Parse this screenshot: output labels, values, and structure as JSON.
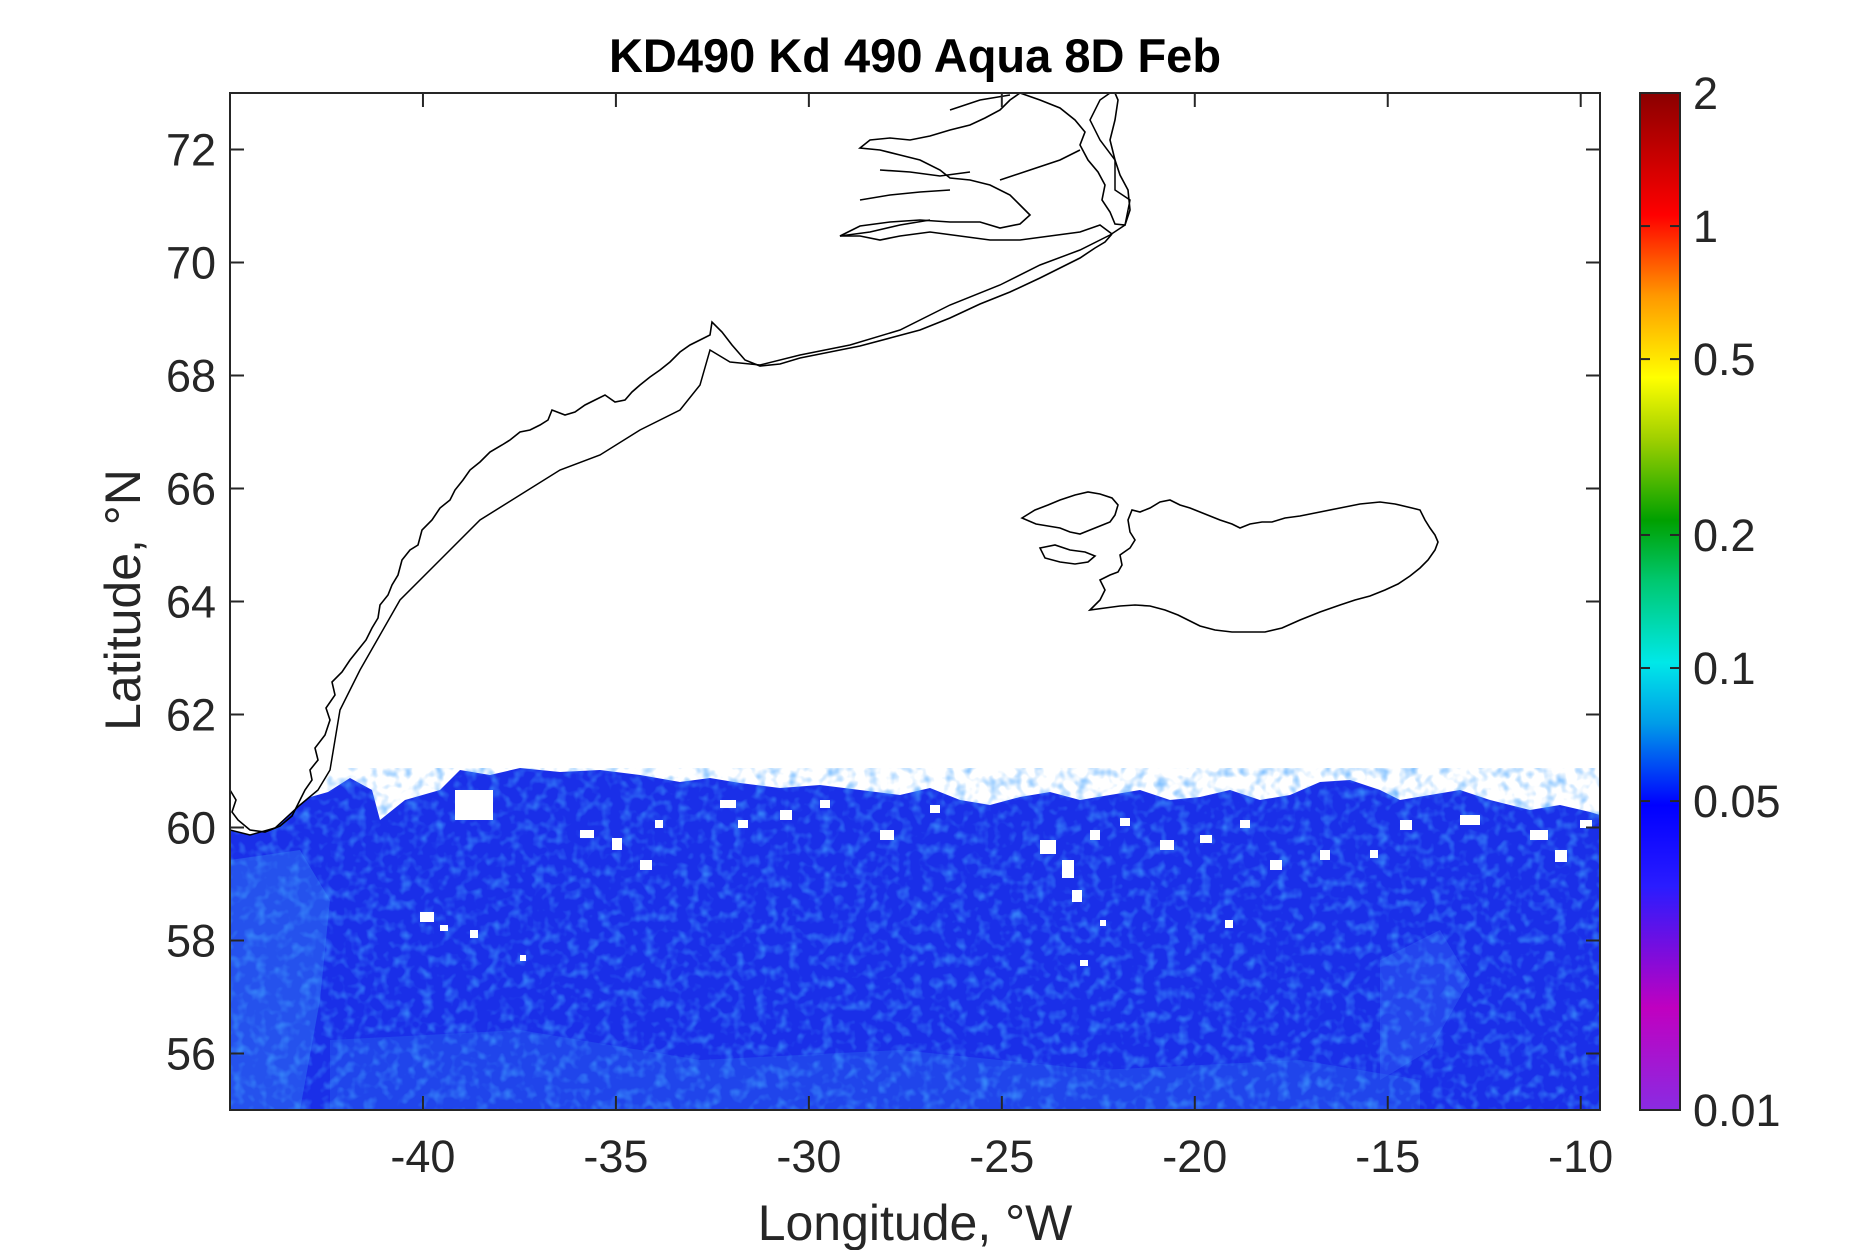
{
  "title": "KD490 Kd 490 Aqua 8D Feb",
  "xlabel": "Longitude, °W",
  "ylabel": "Latitude, °N",
  "chart_data": {
    "type": "heatmap",
    "title": "KD490 Kd 490 Aqua 8D Feb",
    "xlabel": "Longitude, °W",
    "ylabel": "Latitude, °N",
    "xlim": [
      -45,
      -9.5
    ],
    "ylim": [
      55,
      73
    ],
    "x_ticks": [
      -40,
      -35,
      -30,
      -25,
      -20,
      -15,
      -10
    ],
    "x_tick_labels": [
      "-40",
      "-35",
      "-30",
      "-25",
      "-20",
      "-15",
      "-10"
    ],
    "y_ticks": [
      56,
      58,
      60,
      62,
      64,
      66,
      68,
      70,
      72
    ],
    "y_tick_labels": [
      "56",
      "58",
      "60",
      "62",
      "64",
      "66",
      "68",
      "70",
      "72"
    ],
    "colorbar": {
      "scale": "log",
      "range": [
        0.01,
        2
      ],
      "ticks": [
        0.01,
        0.05,
        0.1,
        0.2,
        0.5,
        1,
        2
      ],
      "tick_labels": [
        "0.01",
        "0.05",
        "0.1",
        "0.2",
        "0.5",
        "1",
        "2"
      ],
      "colormap": [
        "#8a2be2",
        "#c000c0",
        "#0000ff",
        "#00aaff",
        "#00e0e0",
        "#00a000",
        "#80d000",
        "#ffff00",
        "#ff9900",
        "#ff0000",
        "#8b0000"
      ]
    },
    "data_coverage": "values ≈ 0.03–0.07 south of ~60–61°N; no data (white) further north",
    "typical_value": 0.05,
    "land_outlines": [
      "Greenland east coast",
      "Iceland"
    ]
  }
}
